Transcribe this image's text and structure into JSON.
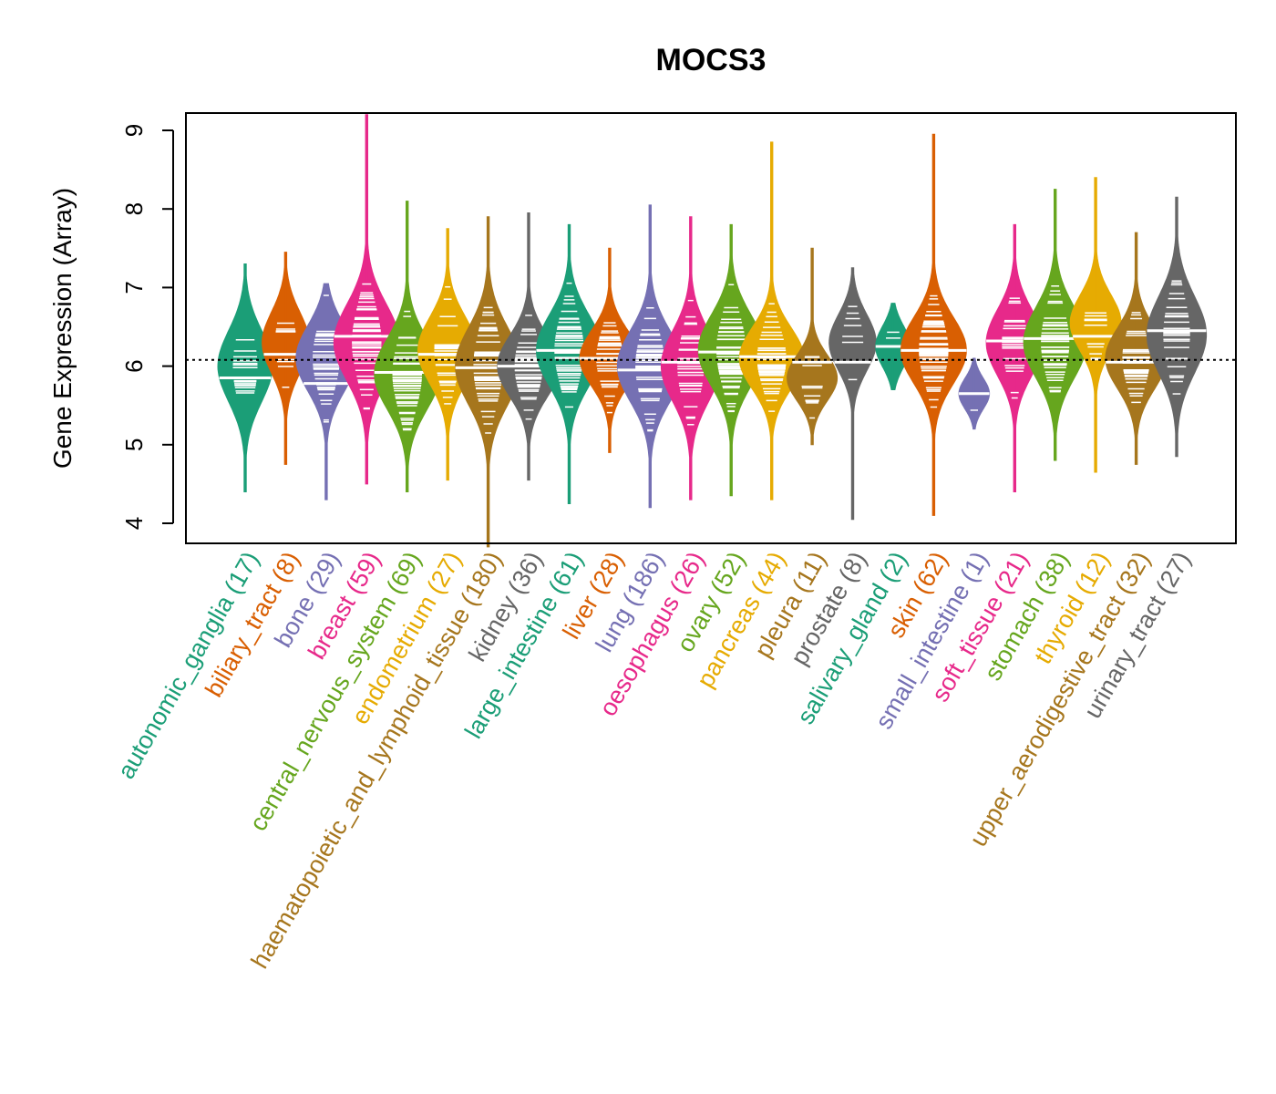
{
  "chart_data": {
    "type": "violin",
    "title": "MOCS3",
    "xlabel": "",
    "ylabel": "Gene Expression (Array)",
    "ylim": [
      3.7,
      9.2
    ],
    "yticks": [
      4,
      5,
      6,
      7,
      8,
      9
    ],
    "reference_line": 6.08,
    "grid": false,
    "legend": "none",
    "categories": [
      {
        "name": "autonomic_ganglia",
        "n": 17,
        "color": "#1B9E77",
        "min": 4.4,
        "max": 7.3,
        "median": 5.85,
        "mode": 6.0,
        "spread": 0.7
      },
      {
        "name": "biliary_tract",
        "n": 8,
        "color": "#D95F02",
        "min": 4.75,
        "max": 7.45,
        "median": 6.15,
        "mode": 6.3,
        "spread": 0.6
      },
      {
        "name": "bone",
        "n": 29,
        "color": "#7570B3",
        "min": 4.3,
        "max": 7.05,
        "median": 5.78,
        "mode": 6.1,
        "spread": 0.65
      },
      {
        "name": "breast",
        "n": 59,
        "color": "#E7298A",
        "min": 4.5,
        "max": 9.2,
        "median": 6.38,
        "mode": 6.3,
        "spread": 0.75
      },
      {
        "name": "central_nervous_system",
        "n": 69,
        "color": "#66A61E",
        "min": 4.4,
        "max": 8.1,
        "median": 5.92,
        "mode": 5.9,
        "spread": 0.7
      },
      {
        "name": "endometrium",
        "n": 27,
        "color": "#E6AB02",
        "min": 4.55,
        "max": 7.75,
        "median": 6.15,
        "mode": 6.2,
        "spread": 0.65
      },
      {
        "name": "haematopoietic_and_lymphoid_tissue",
        "n": 180,
        "color": "#A6761D",
        "min": 3.7,
        "max": 7.9,
        "median": 5.98,
        "mode": 6.0,
        "spread": 0.75
      },
      {
        "name": "kidney",
        "n": 36,
        "color": "#666666",
        "min": 4.55,
        "max": 7.95,
        "median": 6.0,
        "mode": 6.0,
        "spread": 0.6
      },
      {
        "name": "large_intestine",
        "n": 61,
        "color": "#1B9E77",
        "min": 4.25,
        "max": 7.8,
        "median": 6.2,
        "mode": 6.2,
        "spread": 0.7
      },
      {
        "name": "liver",
        "n": 28,
        "color": "#D95F02",
        "min": 4.9,
        "max": 7.5,
        "median": 6.1,
        "mode": 6.1,
        "spread": 0.55
      },
      {
        "name": "lung",
        "n": 186,
        "color": "#7570B3",
        "min": 4.2,
        "max": 8.05,
        "median": 5.95,
        "mode": 6.0,
        "spread": 0.7
      },
      {
        "name": "oesophagus",
        "n": 26,
        "color": "#E7298A",
        "min": 4.3,
        "max": 7.9,
        "median": 6.05,
        "mode": 6.0,
        "spread": 0.7
      },
      {
        "name": "ovary",
        "n": 52,
        "color": "#66A61E",
        "min": 4.35,
        "max": 7.8,
        "median": 6.18,
        "mode": 6.2,
        "spread": 0.7
      },
      {
        "name": "pancreas",
        "n": 44,
        "color": "#E6AB02",
        "min": 4.3,
        "max": 8.85,
        "median": 6.12,
        "mode": 6.1,
        "spread": 0.6
      },
      {
        "name": "pleura",
        "n": 11,
        "color": "#A6761D",
        "min": 5.0,
        "max": 7.5,
        "median": 6.05,
        "mode": 5.85,
        "spread": 0.45
      },
      {
        "name": "prostate",
        "n": 8,
        "color": "#666666",
        "min": 4.05,
        "max": 7.25,
        "median": 6.05,
        "mode": 6.3,
        "spread": 0.55
      },
      {
        "name": "salivary_gland",
        "n": 2,
        "color": "#1B9E77",
        "min": 5.7,
        "max": 6.8,
        "median": 6.25,
        "mode": 6.25,
        "spread": 0.4
      },
      {
        "name": "skin",
        "n": 62,
        "color": "#D95F02",
        "min": 4.1,
        "max": 8.95,
        "median": 6.2,
        "mode": 6.2,
        "spread": 0.65
      },
      {
        "name": "small_intestine",
        "n": 1,
        "color": "#7570B3",
        "min": 5.2,
        "max": 6.1,
        "median": 5.65,
        "mode": 5.65,
        "spread": 0.3
      },
      {
        "name": "soft_tissue",
        "n": 21,
        "color": "#E7298A",
        "min": 4.4,
        "max": 7.8,
        "median": 6.32,
        "mode": 6.3,
        "spread": 0.65
      },
      {
        "name": "stomach",
        "n": 38,
        "color": "#66A61E",
        "min": 4.8,
        "max": 8.25,
        "median": 6.35,
        "mode": 6.3,
        "spread": 0.7
      },
      {
        "name": "thyroid",
        "n": 12,
        "color": "#E6AB02",
        "min": 4.65,
        "max": 8.4,
        "median": 6.38,
        "mode": 6.55,
        "spread": 0.55
      },
      {
        "name": "upper_aerodigestive_tract",
        "n": 32,
        "color": "#A6761D",
        "min": 4.75,
        "max": 7.7,
        "median": 6.05,
        "mode": 6.1,
        "spread": 0.6
      },
      {
        "name": "urinary_tract",
        "n": 27,
        "color": "#666666",
        "min": 4.85,
        "max": 8.15,
        "median": 6.45,
        "mode": 6.4,
        "spread": 0.75
      }
    ]
  }
}
